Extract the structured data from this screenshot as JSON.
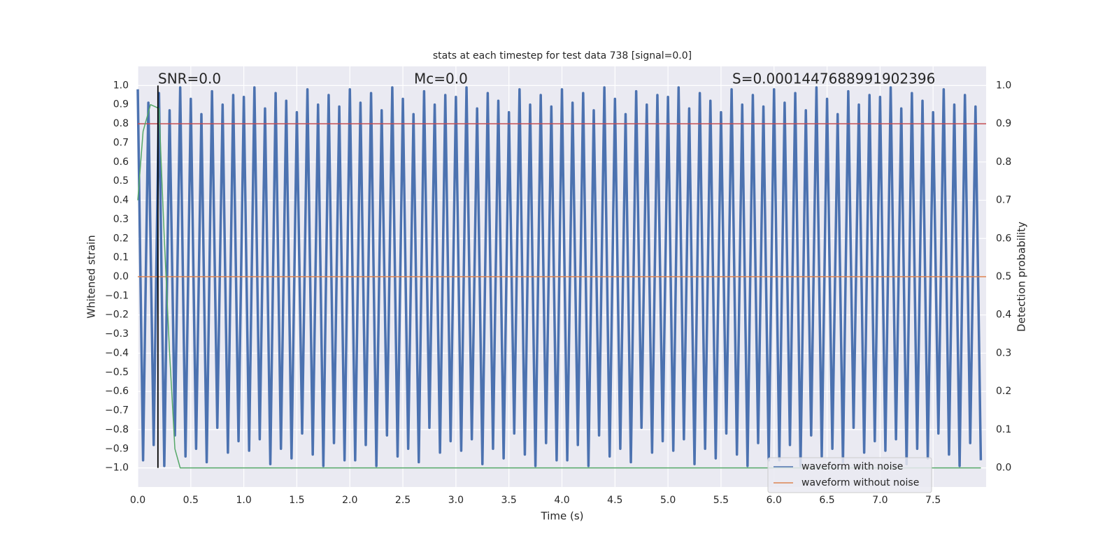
{
  "chart_data": {
    "type": "line",
    "title": "stats at each timestep for test data 738 [signal=0.0]",
    "xlabel": "Time (s)",
    "ylabel": "Whitened strain",
    "y2label": "Detection probability",
    "annotations": [
      "SNR=0.0",
      "Mc=0.0",
      "S=0.0001447688991902396"
    ],
    "xlim": [
      0,
      8
    ],
    "ylim": [
      -1.1,
      1.1
    ],
    "y2lim": [
      -0.05,
      1.05
    ],
    "xticks": [
      {
        "value": 0,
        "label": "0.0"
      },
      0.5,
      {
        "value": 1,
        "label": "1.0"
      },
      1.5,
      {
        "value": 2,
        "label": "2.0"
      },
      2.5,
      {
        "value": 3,
        "label": "3.0"
      },
      3.5,
      {
        "value": 4,
        "label": "4.0"
      },
      4.5,
      {
        "value": 5,
        "label": "5.0"
      },
      5.5,
      {
        "value": 6,
        "label": "6.0"
      },
      6.5,
      {
        "value": 7,
        "label": "7.0"
      },
      7.5
    ],
    "yticks": [
      {
        "value": 1,
        "label": "1.0"
      },
      0.9,
      0.8,
      0.7,
      0.6,
      0.5,
      0.4,
      0.3,
      0.2,
      0.1,
      {
        "value": 0,
        "label": "0.0"
      },
      {
        "value": -0.1,
        "label": "−0.1"
      },
      {
        "value": -0.2,
        "label": "−0.2"
      },
      {
        "value": -0.3,
        "label": "−0.3"
      },
      {
        "value": -0.4,
        "label": "−0.4"
      },
      {
        "value": -0.5,
        "label": "−0.5"
      },
      {
        "value": -0.6,
        "label": "−0.6"
      },
      {
        "value": -0.7,
        "label": "−0.7"
      },
      {
        "value": -0.8,
        "label": "−0.8"
      },
      {
        "value": -0.9,
        "label": "−0.9"
      },
      {
        "value": -1,
        "label": "−1.0"
      }
    ],
    "y2ticks": [
      {
        "value": 1,
        "label": "1.0"
      },
      0.9,
      0.8,
      0.7,
      0.6,
      0.5,
      0.4,
      0.3,
      0.2,
      0.1,
      {
        "value": 0,
        "label": "0.0"
      }
    ],
    "grid": true,
    "legend": "lower right",
    "series": [
      {
        "name": "waveform with noise",
        "color": "#4c72b0",
        "x": [
          0,
          0.05,
          0.1,
          0.15,
          0.2,
          0.25,
          0.3,
          0.35,
          0.4,
          0.45,
          0.5,
          0.55,
          0.6,
          0.65,
          0.7,
          0.75,
          0.8,
          0.85,
          0.9,
          0.95,
          1,
          1.05,
          1.1,
          1.15,
          1.2,
          1.25,
          1.3,
          1.35,
          1.4,
          1.45,
          1.5,
          1.55,
          1.6,
          1.65,
          1.7,
          1.75,
          1.8,
          1.85,
          1.9,
          1.95,
          2,
          2.05,
          2.1,
          2.15,
          2.2,
          2.25,
          2.3,
          2.35,
          2.4,
          2.45,
          2.5,
          2.55,
          2.6,
          2.65,
          2.7,
          2.75,
          2.8,
          2.85,
          2.9,
          2.95,
          3,
          3.05,
          3.1,
          3.15,
          3.2,
          3.25,
          3.3,
          3.35,
          3.4,
          3.45,
          3.5,
          3.55,
          3.6,
          3.65,
          3.7,
          3.75,
          3.8,
          3.85,
          3.9,
          3.95,
          4,
          4.05,
          4.1,
          4.15,
          4.2,
          4.25,
          4.3,
          4.35,
          4.4,
          4.45,
          4.5,
          4.55,
          4.6,
          4.65,
          4.7,
          4.75,
          4.8,
          4.85,
          4.9,
          4.95,
          5,
          5.05,
          5.1,
          5.15,
          5.2,
          5.25,
          5.3,
          5.35,
          5.4,
          5.45,
          5.5,
          5.55,
          5.6,
          5.65,
          5.7,
          5.75,
          5.8,
          5.85,
          5.9,
          5.95,
          6,
          6.05,
          6.1,
          6.15,
          6.2,
          6.25,
          6.3,
          6.35,
          6.4,
          6.45,
          6.5,
          6.55,
          6.6,
          6.65,
          6.7,
          6.75,
          6.8,
          6.85,
          6.9,
          6.95,
          7,
          7.05,
          7.1,
          7.15,
          7.2,
          7.25,
          7.3,
          7.35,
          7.4,
          7.45,
          7.5,
          7.55,
          7.6,
          7.65,
          7.7,
          7.75,
          7.8,
          7.85,
          7.9,
          7.95
        ],
        "values": [
          0.98,
          -0.96,
          0.91,
          -0.88,
          0.96,
          -0.99,
          0.87,
          -0.83,
          0.99,
          -0.94,
          0.93,
          -0.9,
          0.85,
          -0.97,
          0.97,
          -0.79,
          0.9,
          -0.92,
          0.95,
          -0.86,
          0.94,
          -0.91,
          0.99,
          -0.85,
          0.88,
          -0.98,
          0.96,
          -0.9,
          0.92,
          -0.95,
          0.86,
          -0.82,
          0.98,
          -0.93,
          0.9,
          -0.99,
          0.95,
          -0.87,
          0.89,
          -0.96,
          0.98,
          -0.96,
          0.91,
          -0.88,
          0.96,
          -0.99,
          0.87,
          -0.83,
          0.99,
          -0.94,
          0.93,
          -0.9,
          0.85,
          -0.97,
          0.97,
          -0.79,
          0.9,
          -0.92,
          0.95,
          -0.86,
          0.94,
          -0.91,
          0.99,
          -0.85,
          0.88,
          -0.98,
          0.96,
          -0.9,
          0.92,
          -0.95,
          0.86,
          -0.82,
          0.98,
          -0.93,
          0.9,
          -0.99,
          0.95,
          -0.87,
          0.89,
          -0.96,
          0.98,
          -0.96,
          0.91,
          -0.88,
          0.96,
          -0.99,
          0.87,
          -0.83,
          0.99,
          -0.94,
          0.93,
          -0.9,
          0.85,
          -0.97,
          0.97,
          -0.79,
          0.9,
          -0.92,
          0.95,
          -0.86,
          0.94,
          -0.91,
          0.99,
          -0.85,
          0.88,
          -0.98,
          0.96,
          -0.9,
          0.92,
          -0.95,
          0.86,
          -0.82,
          0.98,
          -0.93,
          0.9,
          -0.99,
          0.95,
          -0.87,
          0.89,
          -0.96,
          0.98,
          -0.96,
          0.91,
          -0.88,
          0.96,
          -0.99,
          0.87,
          -0.83,
          0.99,
          -0.94,
          0.93,
          -0.9,
          0.85,
          -0.97,
          0.97,
          -0.79,
          0.9,
          -0.92,
          0.95,
          -0.86,
          0.94,
          -0.91,
          0.99,
          -0.85,
          0.88,
          -0.98,
          0.96,
          -0.9,
          0.92,
          -0.95,
          0.86,
          -0.82,
          0.98,
          -0.93,
          0.9,
          -0.99,
          0.95,
          -0.87,
          0.89,
          -0.96
        ]
      },
      {
        "name": "waveform without noise",
        "color": "#dd8452",
        "x": [
          0,
          8
        ],
        "values": [
          0,
          0
        ]
      }
    ],
    "probability": {
      "color": "#55a868",
      "axis": "y2",
      "x": [
        0,
        0.05,
        0.12,
        0.2,
        0.25,
        0.3,
        0.35,
        0.4,
        7.95
      ],
      "values": [
        0.7,
        0.88,
        0.95,
        0.94,
        0.6,
        0.3,
        0.05,
        0,
        0
      ]
    },
    "hlines": [
      {
        "value": 0.9,
        "axis": "y2",
        "color": "#c44e52"
      }
    ],
    "vlines": [
      {
        "value": 0.19,
        "color": "#000000"
      }
    ]
  }
}
